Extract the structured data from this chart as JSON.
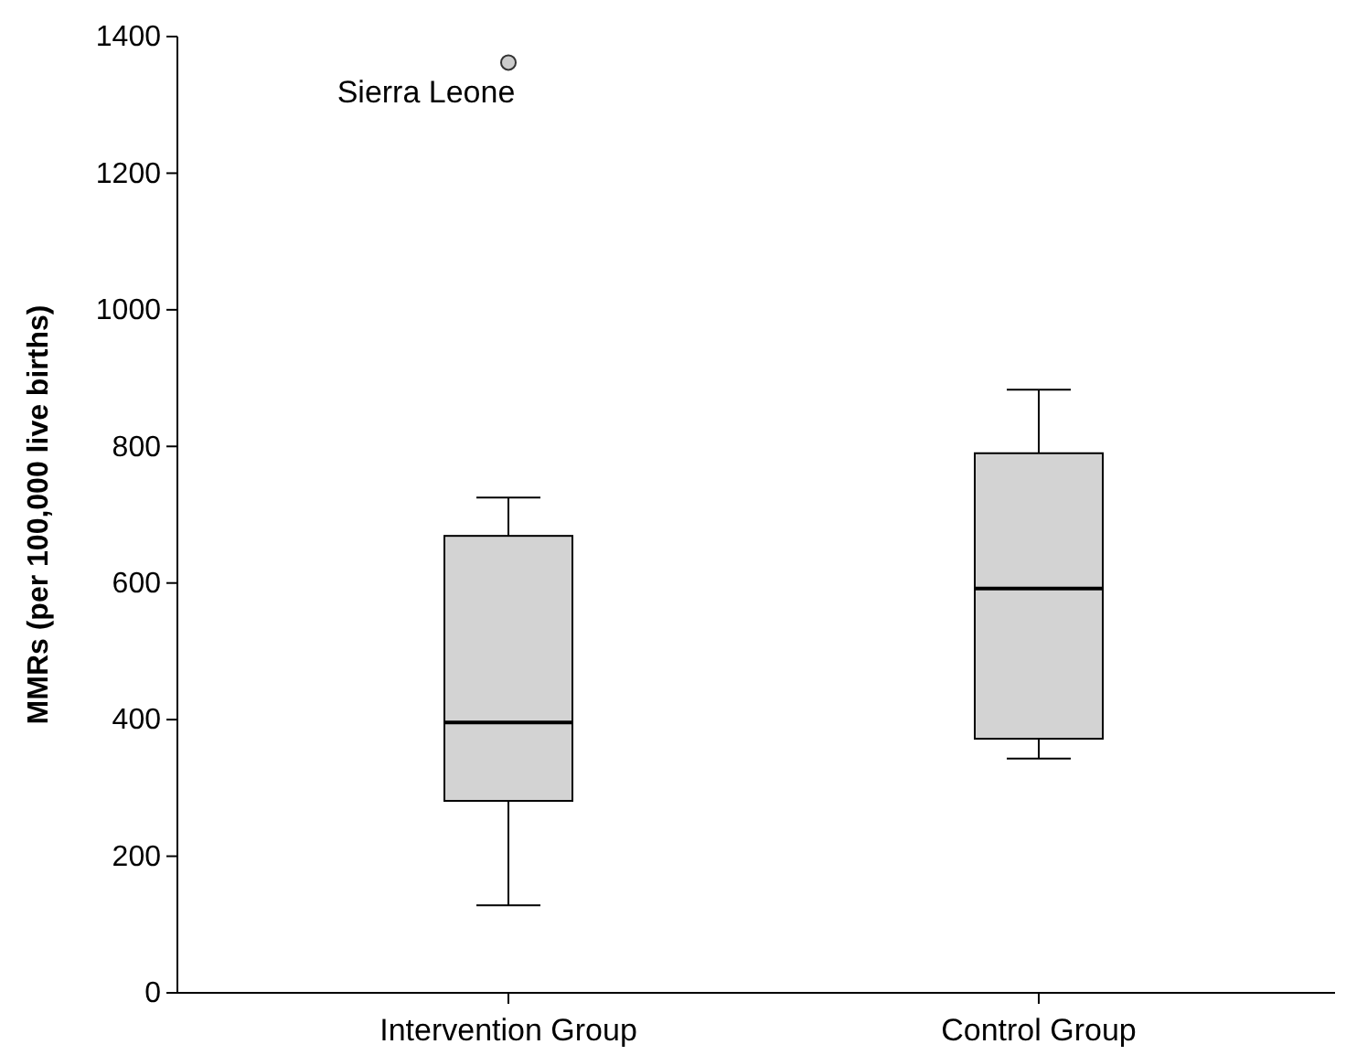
{
  "chart_data": {
    "type": "box",
    "ylabel": "MMRs (per 100,000 live births)",
    "categories": [
      "Intervention Group",
      "Control Group"
    ],
    "boxes": [
      {
        "low": 128,
        "q1": 281,
        "median": 396,
        "q3": 669,
        "high": 725,
        "outliers": [
          1362
        ]
      },
      {
        "low": 343,
        "q1": 372,
        "median": 592,
        "q3": 790,
        "high": 883
      }
    ],
    "color": "#d3d3d3",
    "ylim": [
      0,
      1400
    ],
    "yticks": [
      0,
      200,
      400,
      600,
      800,
      1000,
      1200,
      1400
    ],
    "grid": false,
    "annotations": [
      "Sierra Leone"
    ]
  }
}
